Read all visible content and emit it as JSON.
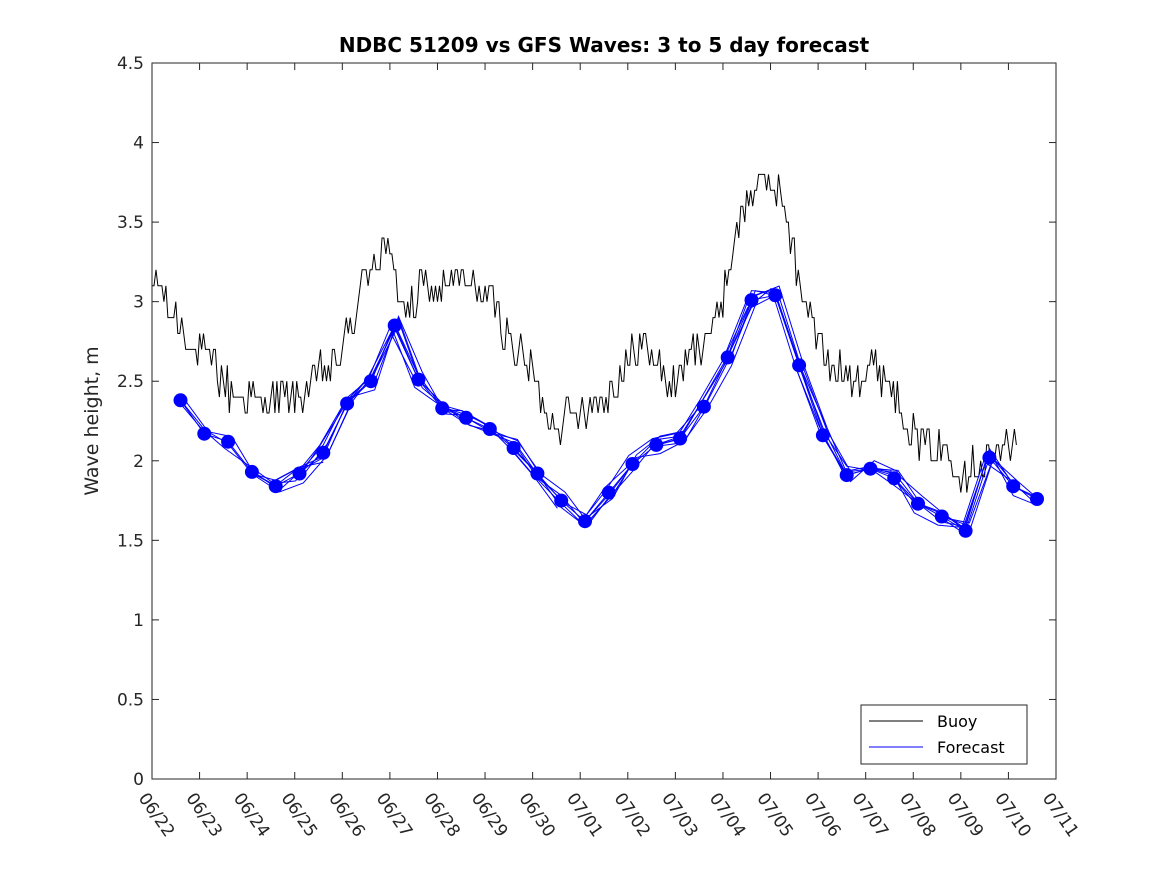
{
  "chart_data": {
    "type": "line",
    "title": "NDBC 51209 vs GFS Waves: 3 to 5 day forecast",
    "xlabel": "",
    "ylabel": "Wave height, m",
    "xlim": [
      "06/22",
      "07/11"
    ],
    "ylim": [
      0,
      4.5
    ],
    "y_ticks": [
      0,
      0.5,
      1,
      1.5,
      2,
      2.5,
      3,
      3.5,
      4,
      4.5
    ],
    "y_tick_labels": [
      "0",
      "0.5",
      "1",
      "1.5",
      "2",
      "2.5",
      "3",
      "3.5",
      "4",
      "4.5"
    ],
    "x_tick_labels": [
      "06/22",
      "06/23",
      "06/24",
      "06/25",
      "06/26",
      "06/27",
      "06/28",
      "06/29",
      "06/30",
      "07/01",
      "07/02",
      "07/03",
      "07/04",
      "07/05",
      "07/06",
      "07/07",
      "07/08",
      "07/09",
      "07/10",
      "07/11"
    ],
    "grid": false,
    "legend_position": "bottom-right",
    "colors": {
      "buoy": "#000000",
      "forecast": "#0000ff",
      "axes": "#262626"
    },
    "legend": [
      {
        "name": "Buoy",
        "color": "#000000"
      },
      {
        "name": "Forecast",
        "color": "#0000ff"
      }
    ],
    "buoy_anchor_points": {
      "x_days": [
        0,
        0.1,
        0.3,
        0.6,
        0.9,
        1.3,
        1.6,
        2.0,
        2.3,
        2.6,
        2.9,
        3.2,
        3.5,
        3.8,
        4.0,
        4.2,
        4.5,
        4.9,
        5.2,
        5.4,
        5.7,
        6.0,
        6.3,
        6.6,
        7.0,
        7.4,
        7.7,
        8.0,
        8.3,
        8.6,
        8.9,
        9.2,
        9.6,
        10.0,
        10.3,
        10.6,
        10.9,
        11.2,
        11.5,
        11.8,
        12.0,
        12.3,
        12.6,
        12.9,
        13.2,
        13.4,
        13.7,
        14.0,
        14.3,
        14.6,
        14.9,
        15.2,
        15.5,
        15.8,
        16.1,
        16.4,
        16.7,
        16.9,
        17.2,
        17.5,
        17.8,
        18.0,
        18.2
      ],
      "values": [
        3.0,
        3.2,
        2.95,
        2.85,
        2.7,
        2.6,
        2.45,
        2.4,
        2.35,
        2.4,
        2.4,
        2.45,
        2.55,
        2.6,
        2.7,
        2.85,
        3.2,
        3.35,
        3.05,
        2.9,
        3.1,
        3.05,
        3.15,
        3.1,
        3.05,
        2.85,
        2.65,
        2.55,
        2.3,
        2.25,
        2.3,
        2.35,
        2.45,
        2.6,
        2.75,
        2.65,
        2.45,
        2.6,
        2.75,
        2.85,
        3.05,
        3.45,
        3.7,
        3.75,
        3.7,
        3.4,
        3.05,
        2.75,
        2.55,
        2.55,
        2.55,
        2.6,
        2.5,
        2.3,
        2.15,
        2.05,
        2.1,
        1.95,
        1.95,
        2.0,
        2.05,
        2.1,
        2.2
      ],
      "noise_amplitude": 0.12
    },
    "forecast_points": {
      "x_days": [
        0.6,
        1.1,
        1.6,
        2.1,
        2.6,
        3.1,
        3.6,
        4.1,
        4.6,
        5.1,
        5.6,
        6.1,
        6.6,
        7.1,
        7.6,
        8.1,
        8.6,
        9.1,
        9.6,
        10.1,
        10.6,
        11.1,
        11.6,
        12.1,
        12.6,
        13.1,
        13.6,
        14.1,
        14.6,
        15.1,
        15.6,
        16.1,
        16.6,
        17.1,
        17.6,
        18.1,
        18.6
      ],
      "values": [
        2.38,
        2.17,
        2.12,
        1.93,
        1.84,
        1.92,
        2.05,
        2.36,
        2.5,
        2.85,
        2.51,
        2.33,
        2.27,
        2.2,
        2.08,
        1.92,
        1.75,
        1.62,
        1.8,
        1.98,
        2.1,
        2.14,
        2.34,
        2.65,
        3.01,
        3.04,
        2.6,
        2.16,
        1.91,
        1.95,
        1.89,
        1.73,
        1.65,
        1.56,
        2.02,
        1.84,
        1.76
      ]
    },
    "forecast_run_spread": 0.12
  }
}
